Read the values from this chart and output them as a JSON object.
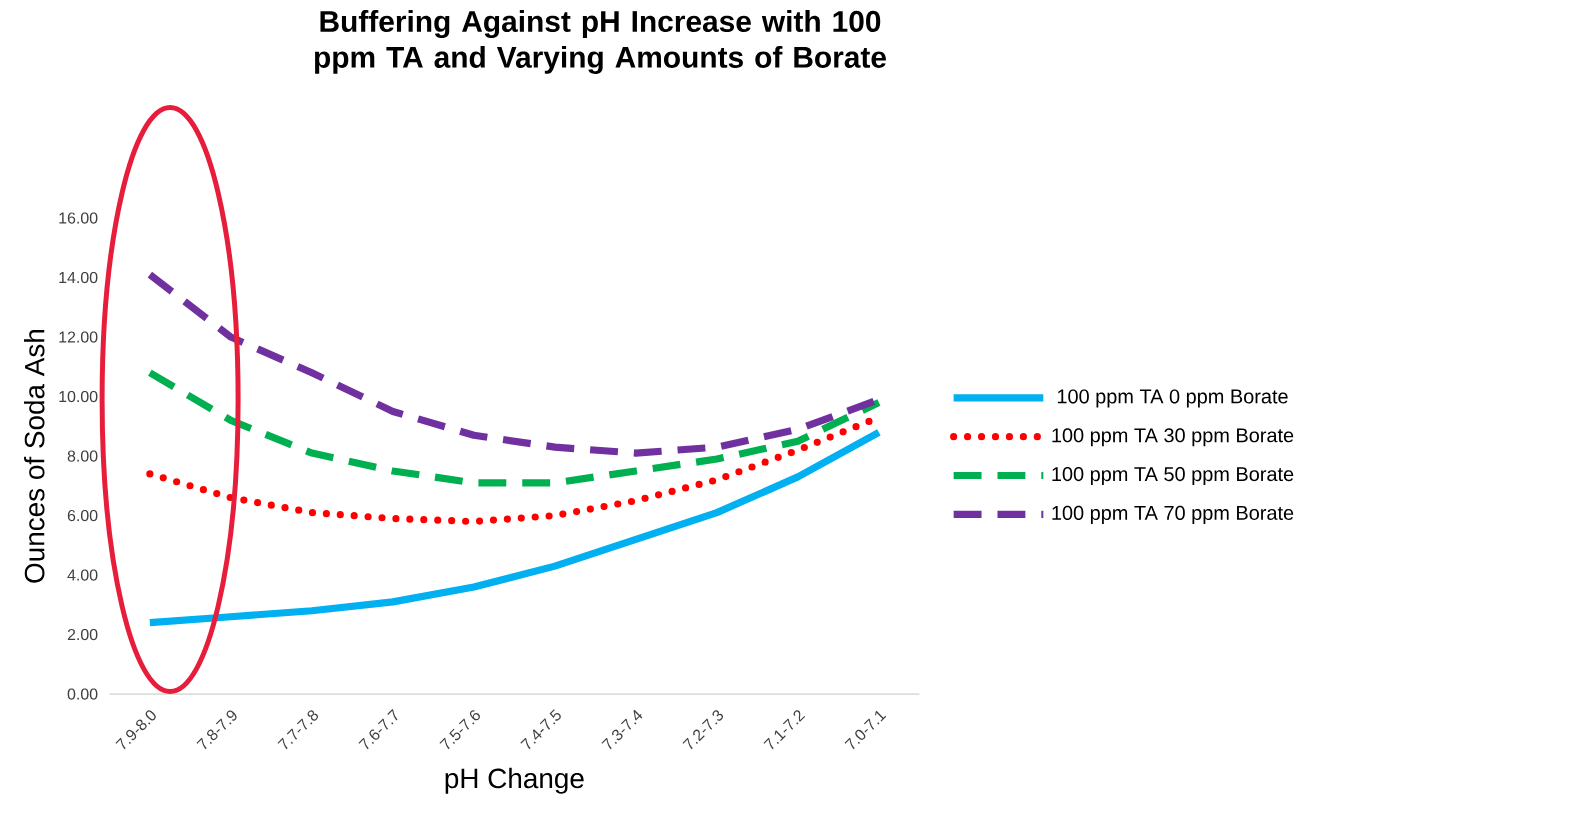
{
  "chart_data": {
    "type": "line",
    "title": "Buffering Against pH Increase with 100 ppm TA and Varying Amounts of Borate",
    "xlabel": "pH Change",
    "ylabel": "Ounces of Soda Ash",
    "categories": [
      "7.9-8.0",
      "7.8-7.9",
      "7.7-7.8",
      "7.6-7.7",
      "7.5-7.6",
      "7.4-7.5",
      "7.3-7.4",
      "7.2-7.3",
      "7.1-7.2",
      "7.0-7.1"
    ],
    "ylim": [
      0,
      16
    ],
    "yticks": [
      {
        "value": 0,
        "label": "0.00"
      },
      {
        "value": 2,
        "label": "2.00"
      },
      {
        "value": 4,
        "label": "4.00"
      },
      {
        "value": 6,
        "label": "6.00"
      },
      {
        "value": 8,
        "label": "8.00"
      },
      {
        "value": 10,
        "label": "10.00"
      },
      {
        "value": 12,
        "label": "12.00"
      },
      {
        "value": 14,
        "label": "14.00"
      },
      {
        "value": 16,
        "label": "16.00"
      }
    ],
    "grid": false,
    "legend": "right",
    "marker": "none",
    "series": [
      {
        "name": "100 ppm TA 0 ppm Borate",
        "color": "#00b0f0",
        "line_style": "solid",
        "values": [
          2.4,
          2.6,
          2.8,
          3.1,
          3.6,
          4.3,
          5.2,
          6.1,
          7.3,
          8.8
        ]
      },
      {
        "name": "100 ppm TA 30 ppm Borate",
        "color": "#ff0000",
        "line_style": "dotted",
        "values": [
          7.4,
          6.6,
          6.1,
          5.9,
          5.8,
          6.0,
          6.5,
          7.2,
          8.2,
          9.3
        ]
      },
      {
        "name": "100 ppm TA 50 ppm Borate",
        "color": "#00b050",
        "line_style": "dashed",
        "values": [
          10.8,
          9.2,
          8.1,
          7.5,
          7.1,
          7.1,
          7.5,
          7.9,
          8.5,
          9.8
        ]
      },
      {
        "name": "100 ppm TA 70 ppm Borate",
        "color": "#7030a0",
        "line_style": "dashed",
        "values": [
          14.1,
          12.0,
          10.8,
          9.5,
          8.7,
          8.3,
          8.1,
          8.3,
          8.9,
          9.9
        ]
      }
    ]
  }
}
